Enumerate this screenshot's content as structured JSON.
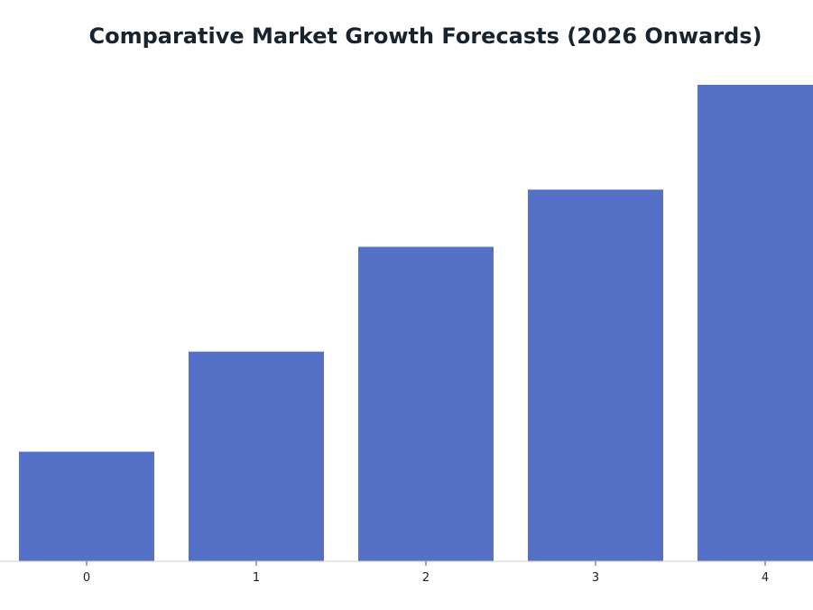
{
  "chart_data": {
    "type": "bar",
    "title": "Comparative Market Growth Forecasts (2026 Onwards)",
    "categories": [
      "0",
      "1",
      "2",
      "3",
      "4"
    ],
    "values": [
      2.3,
      4.4,
      6.6,
      7.8,
      10.0
    ],
    "ylim": [
      0,
      10.5
    ],
    "xlabel": "",
    "ylabel": "",
    "grid": false,
    "bar_color": "#5571c7",
    "axis_color": "#cccccc",
    "title_color": "#17232f"
  }
}
